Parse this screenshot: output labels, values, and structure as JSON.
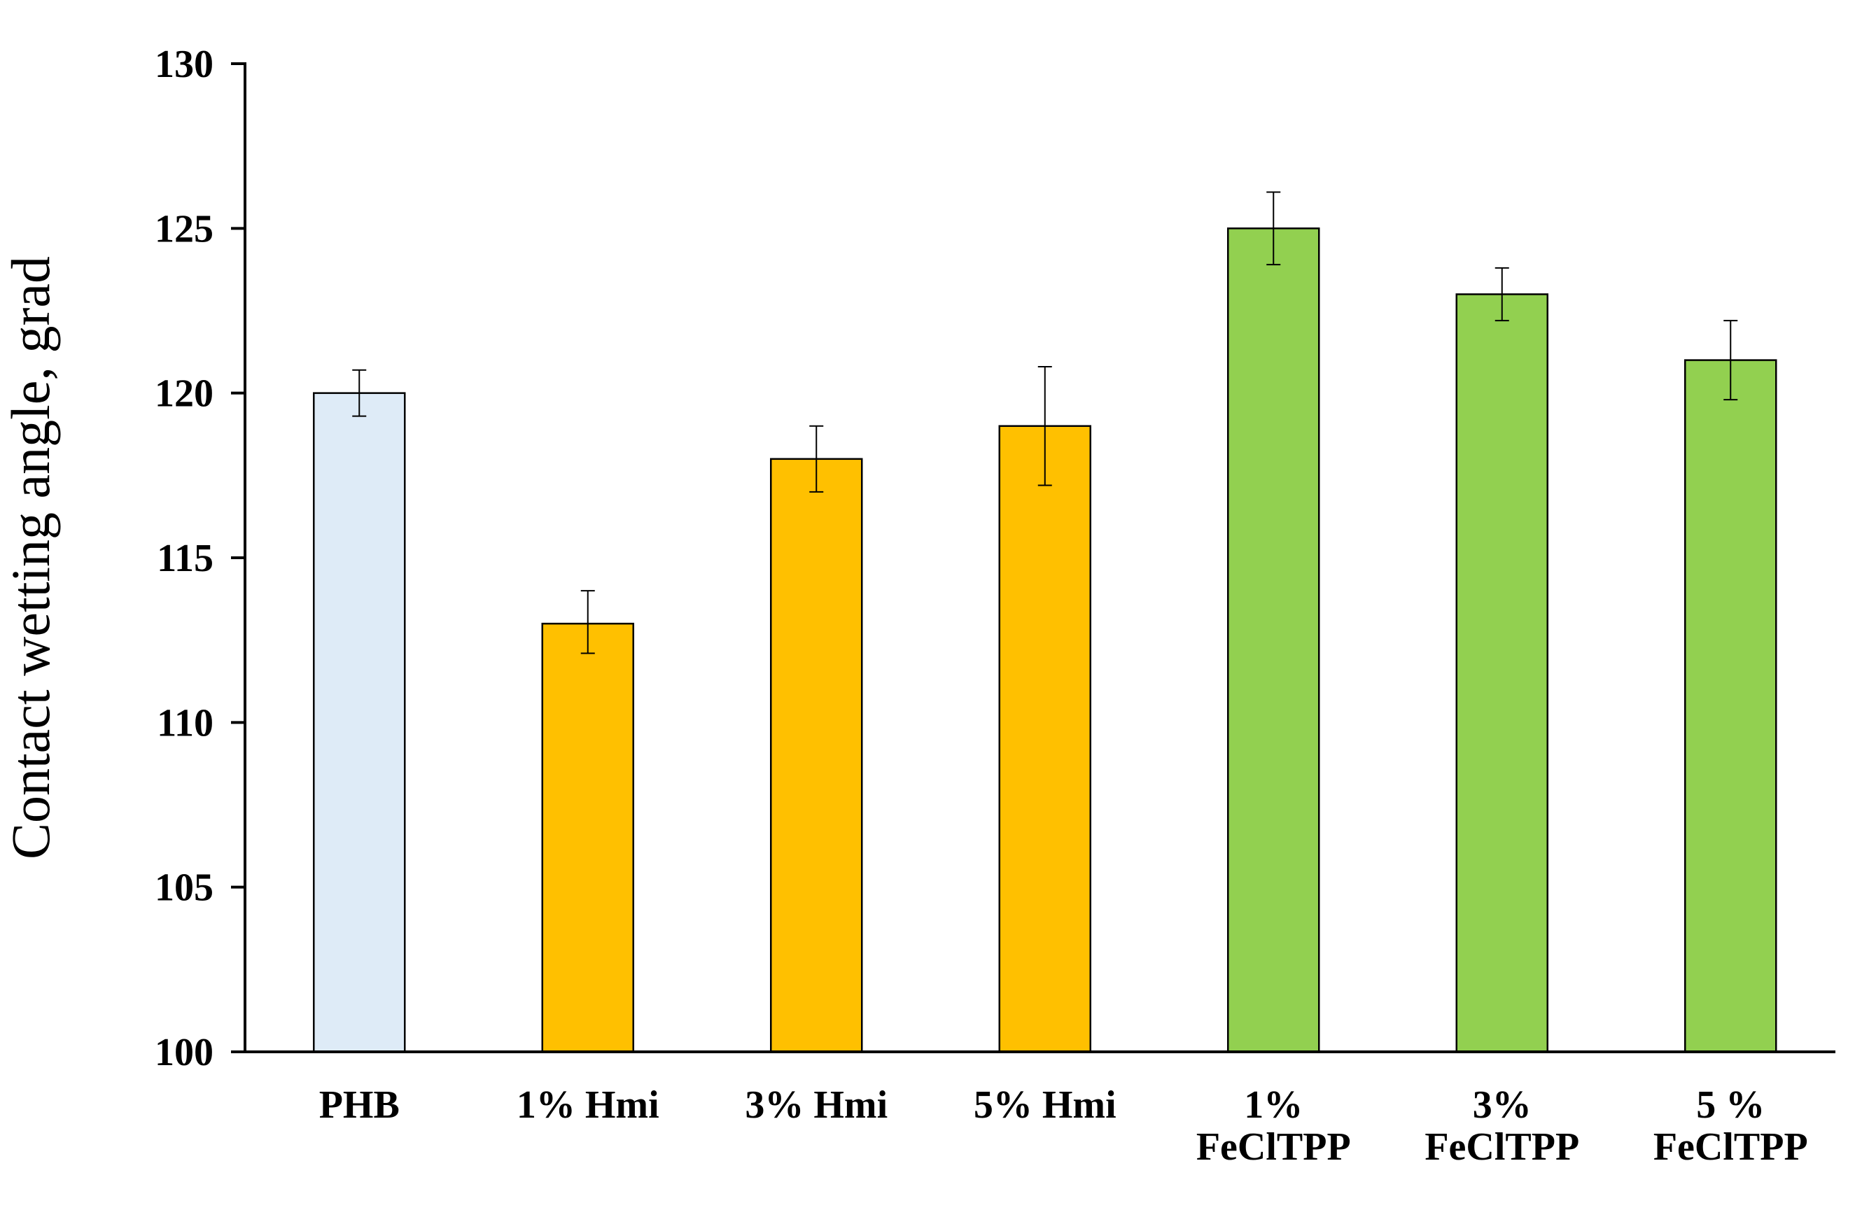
{
  "chart_data": {
    "type": "bar",
    "title": "",
    "xlabel": "",
    "ylabel": "Contact wetting angle, grad",
    "ylim": [
      100,
      130
    ],
    "yticks": [
      "100",
      "105",
      "110",
      "115",
      "120",
      "125",
      "130"
    ],
    "grid": false,
    "legend": "none",
    "categories": [
      [
        "PHB"
      ],
      [
        "1% Hmi"
      ],
      [
        "3% Hmi"
      ],
      [
        "5% Hmi"
      ],
      [
        "1%",
        "FeClTPP"
      ],
      [
        "3%",
        "FeClTPP"
      ],
      [
        "5 %",
        "FeClTPP"
      ]
    ],
    "values": [
      120,
      113,
      118,
      119,
      125,
      123,
      121
    ],
    "error_low": [
      119.3,
      112.1,
      117.0,
      117.2,
      123.9,
      122.2,
      119.8
    ],
    "error_high": [
      120.7,
      114.0,
      119.0,
      120.8,
      126.1,
      123.8,
      122.2
    ],
    "colors": [
      "#DEEBF7",
      "#FFC000",
      "#FFC000",
      "#FFC000",
      "#92D050",
      "#92D050",
      "#92D050"
    ]
  }
}
